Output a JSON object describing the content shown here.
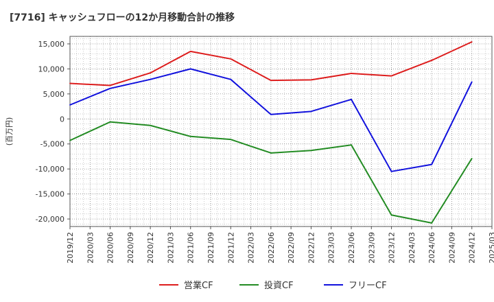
{
  "chart_data": {
    "type": "line",
    "title": "[7716]  キャッシュフローの12か月移動合計の推移",
    "ylabel": "(百万円)",
    "xlabel": "",
    "ylim": [
      -21500,
      16500
    ],
    "yticks": [
      15000,
      10000,
      5000,
      0,
      -5000,
      -10000,
      -15000,
      -20000
    ],
    "ytick_labels": [
      "15,000",
      "10,000",
      "5,000",
      "0",
      "-5,000",
      "-10,000",
      "-15,000",
      "-20,000"
    ],
    "categories": [
      "2019/12",
      "2020/03",
      "2020/06",
      "2020/09",
      "2020/12",
      "2021/03",
      "2021/06",
      "2021/09",
      "2021/12",
      "2022/03",
      "2022/06",
      "2022/09",
      "2022/12",
      "2023/03",
      "2023/06",
      "2023/09",
      "2023/12",
      "2024/03",
      "2024/06",
      "2024/09",
      "2024/12",
      "2025/03"
    ],
    "grid": true,
    "legend_position": "bottom",
    "series": [
      {
        "name": "営業CF",
        "color": "#dd1c1c",
        "points": [
          {
            "x": "2019/12",
            "y": 7100
          },
          {
            "x": "2020/06",
            "y": 6700
          },
          {
            "x": "2020/12",
            "y": 9200
          },
          {
            "x": "2021/06",
            "y": 13500
          },
          {
            "x": "2021/12",
            "y": 12000
          },
          {
            "x": "2022/06",
            "y": 7700
          },
          {
            "x": "2022/12",
            "y": 7800
          },
          {
            "x": "2023/06",
            "y": 9100
          },
          {
            "x": "2023/12",
            "y": 8600
          },
          {
            "x": "2024/06",
            "y": 11700
          },
          {
            "x": "2024/12",
            "y": 15400
          }
        ]
      },
      {
        "name": "投資CF",
        "color": "#228b22",
        "points": [
          {
            "x": "2019/12",
            "y": -4300
          },
          {
            "x": "2020/06",
            "y": -600
          },
          {
            "x": "2020/12",
            "y": -1300
          },
          {
            "x": "2021/06",
            "y": -3500
          },
          {
            "x": "2021/12",
            "y": -4100
          },
          {
            "x": "2022/06",
            "y": -6800
          },
          {
            "x": "2022/12",
            "y": -6300
          },
          {
            "x": "2023/06",
            "y": -5200
          },
          {
            "x": "2023/12",
            "y": -19200
          },
          {
            "x": "2024/06",
            "y": -20800
          },
          {
            "x": "2024/12",
            "y": -7900
          }
        ]
      },
      {
        "name": "フリーCF",
        "color": "#1010dd",
        "points": [
          {
            "x": "2019/12",
            "y": 2800
          },
          {
            "x": "2020/06",
            "y": 6100
          },
          {
            "x": "2020/12",
            "y": 7900
          },
          {
            "x": "2021/06",
            "y": 10000
          },
          {
            "x": "2021/12",
            "y": 7900
          },
          {
            "x": "2022/06",
            "y": 900
          },
          {
            "x": "2022/12",
            "y": 1500
          },
          {
            "x": "2023/06",
            "y": 3900
          },
          {
            "x": "2023/12",
            "y": -10500
          },
          {
            "x": "2024/06",
            "y": -9100
          },
          {
            "x": "2024/12",
            "y": 7400
          }
        ]
      }
    ]
  }
}
